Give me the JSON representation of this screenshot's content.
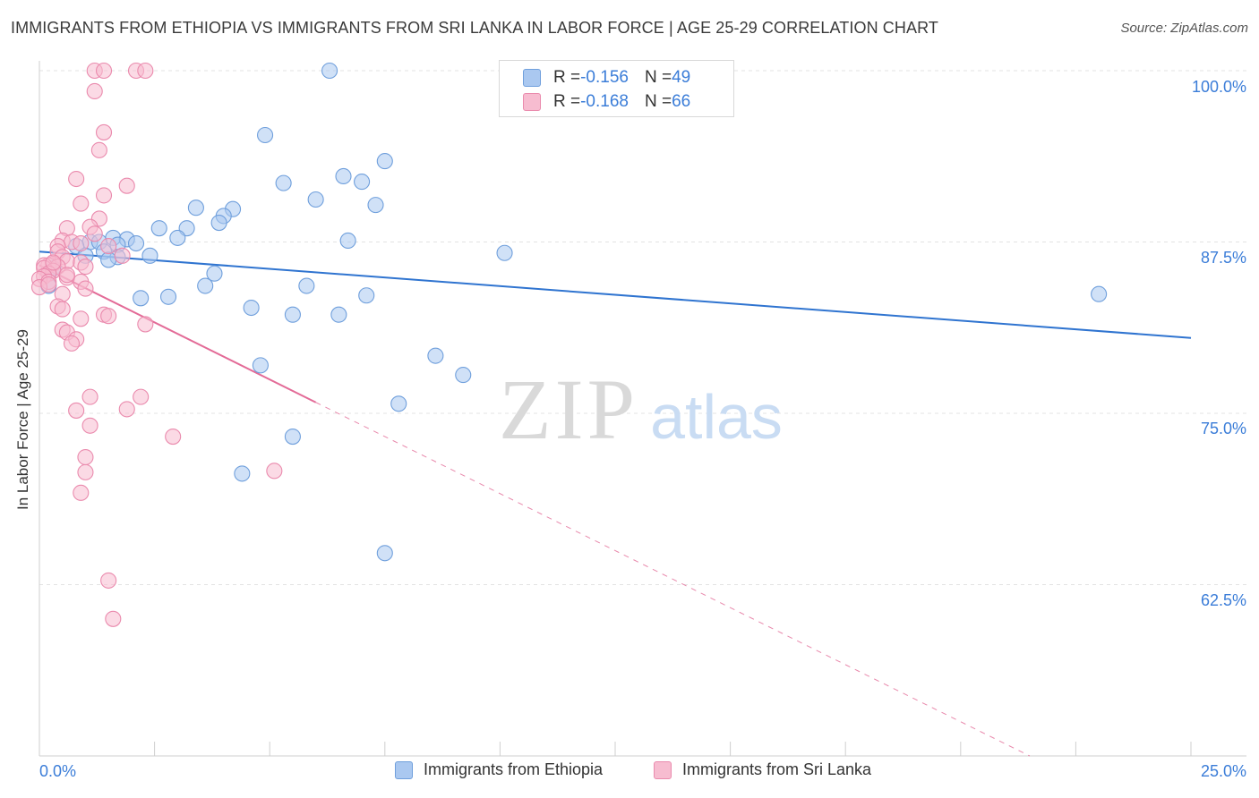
{
  "title": "IMMIGRANTS FROM ETHIOPIA VS IMMIGRANTS FROM SRI LANKA IN LABOR FORCE | AGE 25-29 CORRELATION CHART",
  "source": "Source: ZipAtlas.com",
  "watermark": {
    "zip": "ZIP",
    "atlas": "atlas"
  },
  "colors": {
    "ethiopia_fill": "#aac8f0",
    "ethiopia_stroke": "#6f9fdc",
    "ethiopia_line": "#2f74d0",
    "srilanka_fill": "#f7bcd0",
    "srilanka_stroke": "#ea8aad",
    "srilanka_line": "#e36b97",
    "axis_label": "#3b7dd8"
  },
  "stats": [
    {
      "r_label": "R = ",
      "r_value": "-0.156",
      "n_label": "N = ",
      "n_value": "49"
    },
    {
      "r_label": "R = ",
      "r_value": "-0.168",
      "n_label": "N = ",
      "n_value": "66"
    }
  ],
  "legend": [
    "Immigrants from Ethiopia",
    "Immigrants from Sri Lanka"
  ],
  "x_tick_labels": {
    "left": "0.0%",
    "right": "25.0%"
  },
  "y_tick_labels": [
    "100.0%",
    "87.5%",
    "75.0%",
    "62.5%"
  ],
  "chart_data": {
    "type": "scatter",
    "xlabel": "",
    "ylabel": "In Labor Force | Age 25-29",
    "xlim": [
      0,
      25
    ],
    "ylim": [
      50,
      100
    ],
    "y_ticks": [
      100,
      87.5,
      75,
      62.5
    ],
    "grid": "horizontal dashed",
    "legend_position": "bottom-center",
    "series": [
      {
        "name": "Immigrants from Ethiopia",
        "points": [
          [
            6.3,
            100.0
          ],
          [
            4.9,
            95.3
          ],
          [
            7.5,
            93.4
          ],
          [
            6.6,
            92.3
          ],
          [
            7.0,
            91.9
          ],
          [
            5.3,
            91.8
          ],
          [
            6.0,
            90.6
          ],
          [
            7.3,
            90.2
          ],
          [
            3.4,
            90.0
          ],
          [
            4.2,
            89.9
          ],
          [
            4.0,
            89.4
          ],
          [
            3.9,
            88.9
          ],
          [
            2.6,
            88.5
          ],
          [
            3.2,
            88.5
          ],
          [
            3.0,
            87.8
          ],
          [
            1.6,
            87.8
          ],
          [
            1.9,
            87.7
          ],
          [
            2.1,
            87.4
          ],
          [
            6.7,
            87.6
          ],
          [
            1.1,
            87.5
          ],
          [
            1.3,
            87.5
          ],
          [
            0.8,
            87.2
          ],
          [
            1.7,
            87.3
          ],
          [
            1.4,
            86.8
          ],
          [
            2.4,
            86.5
          ],
          [
            1.7,
            86.4
          ],
          [
            1.5,
            86.2
          ],
          [
            10.1,
            86.7
          ],
          [
            3.8,
            85.2
          ],
          [
            0.2,
            85.2
          ],
          [
            3.6,
            84.3
          ],
          [
            5.8,
            84.3
          ],
          [
            2.2,
            83.4
          ],
          [
            2.8,
            83.5
          ],
          [
            7.1,
            83.6
          ],
          [
            23.0,
            83.7
          ],
          [
            4.6,
            82.7
          ],
          [
            5.5,
            82.2
          ],
          [
            6.5,
            82.2
          ],
          [
            8.6,
            79.2
          ],
          [
            4.8,
            78.5
          ],
          [
            9.2,
            77.8
          ],
          [
            7.8,
            75.7
          ],
          [
            5.5,
            73.3
          ],
          [
            4.4,
            70.6
          ],
          [
            7.5,
            64.8
          ],
          [
            0.2,
            84.3
          ],
          [
            0.3,
            85.6
          ],
          [
            1.0,
            86.5
          ]
        ],
        "trend": {
          "x0": 0,
          "y0": 86.8,
          "x1": 25,
          "y1": 80.5
        }
      },
      {
        "name": "Immigrants from Sri Lanka",
        "points": [
          [
            1.2,
            100.0
          ],
          [
            1.4,
            100.0
          ],
          [
            2.1,
            100.0
          ],
          [
            2.3,
            100.0
          ],
          [
            1.2,
            98.5
          ],
          [
            1.4,
            95.5
          ],
          [
            1.3,
            94.2
          ],
          [
            0.8,
            92.1
          ],
          [
            1.9,
            91.6
          ],
          [
            1.4,
            90.9
          ],
          [
            0.9,
            90.3
          ],
          [
            1.3,
            89.2
          ],
          [
            0.6,
            88.5
          ],
          [
            1.1,
            88.6
          ],
          [
            1.2,
            88.1
          ],
          [
            0.5,
            87.6
          ],
          [
            0.7,
            87.5
          ],
          [
            0.9,
            87.4
          ],
          [
            0.4,
            87.2
          ],
          [
            1.5,
            87.2
          ],
          [
            0.4,
            86.8
          ],
          [
            0.5,
            86.4
          ],
          [
            0.6,
            86.1
          ],
          [
            0.9,
            86.0
          ],
          [
            0.3,
            85.9
          ],
          [
            0.2,
            85.8
          ],
          [
            0.1,
            85.8
          ],
          [
            0.4,
            85.7
          ],
          [
            0.1,
            85.6
          ],
          [
            0.3,
            85.4
          ],
          [
            0.2,
            85.2
          ],
          [
            0.1,
            85.0
          ],
          [
            0.0,
            84.8
          ],
          [
            1.8,
            86.5
          ],
          [
            1.0,
            85.7
          ],
          [
            0.2,
            84.6
          ],
          [
            0.6,
            84.9
          ],
          [
            0.9,
            84.6
          ],
          [
            1.0,
            84.1
          ],
          [
            0.5,
            83.7
          ],
          [
            0.4,
            82.8
          ],
          [
            0.5,
            82.6
          ],
          [
            1.4,
            82.2
          ],
          [
            1.5,
            82.1
          ],
          [
            0.9,
            81.9
          ],
          [
            2.3,
            81.5
          ],
          [
            0.5,
            81.1
          ],
          [
            0.6,
            80.9
          ],
          [
            0.8,
            80.4
          ],
          [
            0.7,
            80.1
          ],
          [
            1.1,
            76.2
          ],
          [
            2.2,
            76.2
          ],
          [
            0.8,
            75.2
          ],
          [
            1.9,
            75.3
          ],
          [
            1.1,
            74.1
          ],
          [
            2.9,
            73.3
          ],
          [
            1.0,
            71.8
          ],
          [
            1.0,
            70.7
          ],
          [
            5.1,
            70.8
          ],
          [
            0.9,
            69.2
          ],
          [
            1.5,
            62.8
          ],
          [
            1.6,
            60.0
          ],
          [
            0.0,
            84.2
          ],
          [
            0.2,
            84.4
          ],
          [
            0.3,
            86.0
          ],
          [
            0.6,
            85.1
          ]
        ],
        "trend": {
          "x0": 0,
          "y0": 85.8,
          "x1": 6.0,
          "y1": 75.8
        },
        "trend_extension": {
          "x0": 6.0,
          "y0": 75.8,
          "x1": 21.5,
          "y1": 50.0
        }
      }
    ]
  }
}
